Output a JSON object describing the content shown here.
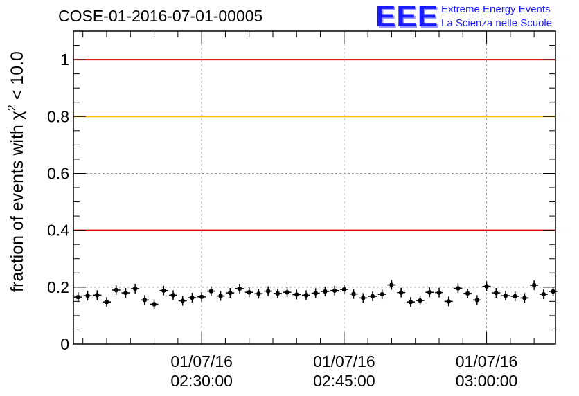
{
  "title": "COSE-01-2016-07-01-00005",
  "logo": {
    "mark": "EEE",
    "line1": "Extreme Energy Events",
    "line2": "La Scienza nelle Scuole"
  },
  "chart_data": {
    "type": "scatter",
    "title": "COSE-01-2016-07-01-00005",
    "ylabel_prefix": "fraction of events with ",
    "ylabel_symbol": "χ",
    "ylabel_sup": "2",
    "ylabel_suffix": " < 10.0",
    "ylim": [
      0,
      1.1
    ],
    "yticks": [
      0,
      0.2,
      0.4,
      0.6,
      0.8,
      1
    ],
    "ytick_labels": [
      "0",
      "0.2",
      "0.4",
      "0.6",
      "0.8",
      "1"
    ],
    "xlim": [
      "2016-07-01 02:16:30",
      "2016-07-01 03:07:15"
    ],
    "xticks": [
      "2016-07-01 02:30:00",
      "2016-07-01 02:45:00",
      "2016-07-01 03:00:00"
    ],
    "xtick_labels": [
      [
        "01/07/16",
        "02:30:00"
      ],
      [
        "01/07/16",
        "02:45:00"
      ],
      [
        "01/07/16",
        "03:00:00"
      ]
    ],
    "grid": true,
    "reference_lines": [
      {
        "y": 1.0,
        "color": "#e00000"
      },
      {
        "y": 0.8,
        "color": "#ffc000"
      },
      {
        "y": 0.4,
        "color": "#e00000"
      }
    ],
    "marker_color": "#000000",
    "series": [
      {
        "x": [
          "2016-07-01 02:17:00",
          "2016-07-01 02:18:00",
          "2016-07-01 02:19:00",
          "2016-07-01 02:20:00",
          "2016-07-01 02:21:00",
          "2016-07-01 02:22:00",
          "2016-07-01 02:23:00",
          "2016-07-01 02:24:00",
          "2016-07-01 02:25:00",
          "2016-07-01 02:26:00",
          "2016-07-01 02:27:00",
          "2016-07-01 02:28:00",
          "2016-07-01 02:29:00",
          "2016-07-01 02:30:00",
          "2016-07-01 02:31:00",
          "2016-07-01 02:32:00",
          "2016-07-01 02:33:00",
          "2016-07-01 02:34:00",
          "2016-07-01 02:35:00",
          "2016-07-01 02:36:00",
          "2016-07-01 02:37:00",
          "2016-07-01 02:38:00",
          "2016-07-01 02:39:00",
          "2016-07-01 02:40:00",
          "2016-07-01 02:41:00",
          "2016-07-01 02:42:00",
          "2016-07-01 02:43:00",
          "2016-07-01 02:44:00",
          "2016-07-01 02:45:00",
          "2016-07-01 02:46:00",
          "2016-07-01 02:47:00",
          "2016-07-01 02:48:00",
          "2016-07-01 02:49:00",
          "2016-07-01 02:50:00",
          "2016-07-01 02:51:00",
          "2016-07-01 02:52:00",
          "2016-07-01 02:53:00",
          "2016-07-01 02:54:00",
          "2016-07-01 02:55:00",
          "2016-07-01 02:56:00",
          "2016-07-01 02:57:00",
          "2016-07-01 02:58:00",
          "2016-07-01 02:59:00",
          "2016-07-01 03:00:00",
          "2016-07-01 03:01:00",
          "2016-07-01 03:02:00",
          "2016-07-01 03:03:00",
          "2016-07-01 03:04:00",
          "2016-07-01 03:05:00",
          "2016-07-01 03:06:00",
          "2016-07-01 03:07:00"
        ],
        "y": [
          0.165,
          0.17,
          0.172,
          0.148,
          0.19,
          0.18,
          0.195,
          0.155,
          0.14,
          0.188,
          0.172,
          0.152,
          0.163,
          0.166,
          0.186,
          0.169,
          0.18,
          0.195,
          0.182,
          0.177,
          0.186,
          0.178,
          0.182,
          0.174,
          0.172,
          0.179,
          0.185,
          0.188,
          0.192,
          0.176,
          0.162,
          0.168,
          0.175,
          0.208,
          0.181,
          0.148,
          0.153,
          0.182,
          0.181,
          0.15,
          0.196,
          0.178,
          0.155,
          0.203,
          0.18,
          0.17,
          0.168,
          0.162,
          0.207,
          0.175,
          0.185
        ]
      }
    ]
  }
}
